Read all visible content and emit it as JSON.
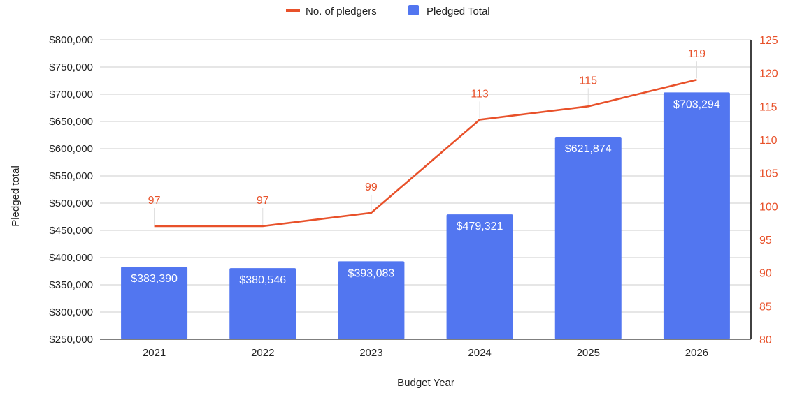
{
  "chart_data": {
    "type": "bar",
    "title": "",
    "categories": [
      "2021",
      "2022",
      "2023",
      "2024",
      "2025",
      "2026"
    ],
    "xlabel": "Budget Year",
    "ylabel": "Pledged total",
    "ylim": [
      250000,
      800000
    ],
    "y2lim": [
      80,
      125
    ],
    "y_ticks": [
      250000,
      300000,
      350000,
      400000,
      450000,
      500000,
      550000,
      600000,
      650000,
      700000,
      750000,
      800000
    ],
    "y_tick_labels": [
      "$250,000",
      "$300,000",
      "$350,000",
      "$400,000",
      "$450,000",
      "$500,000",
      "$550,000",
      "$600,000",
      "$650,000",
      "$700,000",
      "$750,000",
      "$800,000"
    ],
    "y2_ticks": [
      80,
      85,
      90,
      95,
      100,
      105,
      110,
      115,
      120,
      125
    ],
    "y2_tick_labels": [
      "80",
      "85",
      "90",
      "95",
      "100",
      "105",
      "110",
      "115",
      "120",
      "125"
    ],
    "legend_position": "top",
    "grid": true,
    "series": [
      {
        "name": "Pledged Total",
        "type": "bar",
        "axis": "left",
        "color": "#5276f0",
        "values": [
          383390,
          380546,
          393083,
          479321,
          621874,
          703294
        ],
        "labels": [
          "$383,390",
          "$380,546",
          "$393,083",
          "$479,321",
          "$621,874",
          "$703,294"
        ]
      },
      {
        "name": "No. of pledgers",
        "type": "line",
        "axis": "right",
        "color": "#e8512a",
        "values": [
          97,
          97,
          99,
          113,
          115,
          119
        ],
        "labels": [
          "97",
          "97",
          "99",
          "113",
          "115",
          "119"
        ]
      }
    ],
    "legend": [
      {
        "label": "No. of pledgers",
        "marker": "line",
        "color": "#e8512a"
      },
      {
        "label": "Pledged Total",
        "marker": "square",
        "color": "#5276f0"
      }
    ]
  }
}
